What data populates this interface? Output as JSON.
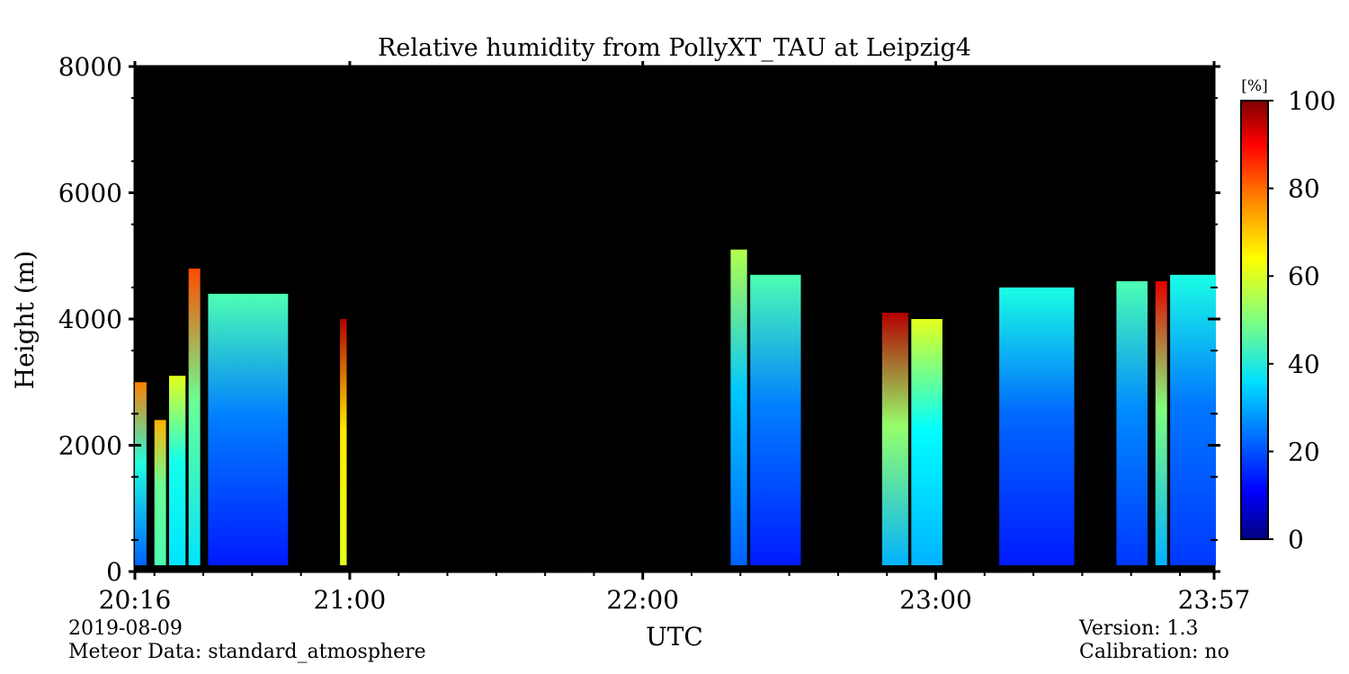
{
  "chart_data": {
    "type": "heatmap",
    "title": "Relative humidity from PollyXT_TAU at Leipzig4",
    "xlabel": "UTC",
    "ylabel": "Height (m)",
    "x_range": [
      "20:16",
      "23:57"
    ],
    "xticks": [
      "20:16",
      "21:00",
      "22:00",
      "23:00",
      "23:57"
    ],
    "ylim": [
      0,
      8000
    ],
    "yticks": [
      "0",
      "2000",
      "4000",
      "6000",
      "8000"
    ],
    "colorbar": {
      "label": "[%]",
      "range": [
        0,
        100
      ],
      "ticks": [
        "0",
        "20",
        "40",
        "60",
        "80",
        "100"
      ],
      "colormap": "jet",
      "stops": [
        "#00007f",
        "#0000ff",
        "#007fff",
        "#00ffff",
        "#7fff7f",
        "#ffff00",
        "#ff7f00",
        "#ff0000",
        "#7f0000"
      ]
    },
    "background_no_data": "#000000",
    "profiles": [
      {
        "start": "20:16",
        "end": "20:18",
        "top_m": 3000,
        "rh_low": 22,
        "rh_high": 75,
        "note": "high near 2500-3000 m"
      },
      {
        "start": "20:20",
        "end": "20:22",
        "top_m": 2400,
        "rh_low": 45,
        "rh_high": 70
      },
      {
        "start": "20:23",
        "end": "20:26",
        "top_m": 3100,
        "rh_low": 35,
        "rh_high": 60
      },
      {
        "start": "20:27",
        "end": "20:29",
        "top_m": 4800,
        "rh_low": 35,
        "rh_high": 80
      },
      {
        "start": "20:31",
        "end": "20:47",
        "top_m": 4400,
        "rh_low": 15,
        "rh_high": 45
      },
      {
        "start": "20:58",
        "end": "20:59",
        "top_m": 4000,
        "rh_low": 60,
        "rh_high": 95
      },
      {
        "start": "22:18",
        "end": "22:21",
        "top_m": 5100,
        "rh_low": 22,
        "rh_high": 55
      },
      {
        "start": "22:22",
        "end": "22:32",
        "top_m": 4700,
        "rh_low": 15,
        "rh_high": 45
      },
      {
        "start": "22:49",
        "end": "22:54",
        "top_m": 4100,
        "rh_low": 30,
        "rh_high": 95
      },
      {
        "start": "22:55",
        "end": "23:01",
        "top_m": 4000,
        "rh_low": 30,
        "rh_high": 60
      },
      {
        "start": "23:13",
        "end": "23:28",
        "top_m": 4500,
        "rh_low": 15,
        "rh_high": 40
      },
      {
        "start": "23:37",
        "end": "23:43",
        "top_m": 4600,
        "rh_low": 18,
        "rh_high": 45
      },
      {
        "start": "23:45",
        "end": "23:47",
        "top_m": 4600,
        "rh_low": 30,
        "rh_high": 90
      },
      {
        "start": "23:48",
        "end": "23:57",
        "top_m": 4700,
        "rh_low": 18,
        "rh_high": 40
      }
    ]
  },
  "footer": {
    "date": "2019-08-09",
    "meteor": "Meteor Data: standard_atmosphere",
    "version": "Version: 1.3",
    "calibration": "Calibration: no"
  }
}
